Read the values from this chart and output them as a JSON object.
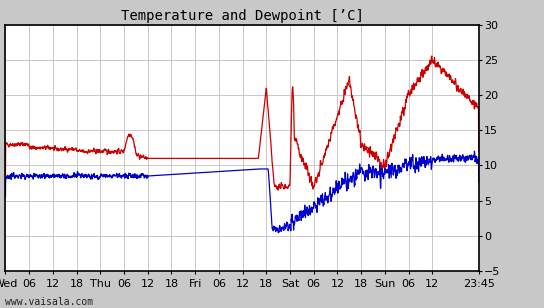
{
  "title": "Temperature and Dewpoint [’C]",
  "ylim": [
    -5,
    30
  ],
  "yticks": [
    -5,
    0,
    5,
    10,
    15,
    20,
    25,
    30
  ],
  "x_tick_positions": [
    0,
    6,
    12,
    18,
    24,
    30,
    36,
    42,
    48,
    54,
    60,
    66,
    72,
    78,
    84,
    90,
    96,
    102,
    108,
    119.75
  ],
  "x_labels": [
    "Wed",
    "06",
    "12",
    "18",
    "Thu",
    "06",
    "12",
    "18",
    "Fri",
    "06",
    "12",
    "18",
    "Sat",
    "06",
    "12",
    "18",
    "Sun",
    "06",
    "12",
    "23:45"
  ],
  "background_color": "#ffffff",
  "fig_background": "#c8c8c8",
  "grid_color": "#c8c8c8",
  "temp_color": "#cc0000",
  "dewp_color": "#0000cc",
  "watermark": "www.vaisala.com",
  "title_fontsize": 10,
  "tick_fontsize": 8,
  "line_width": 0.9,
  "total_hours": 119.75
}
